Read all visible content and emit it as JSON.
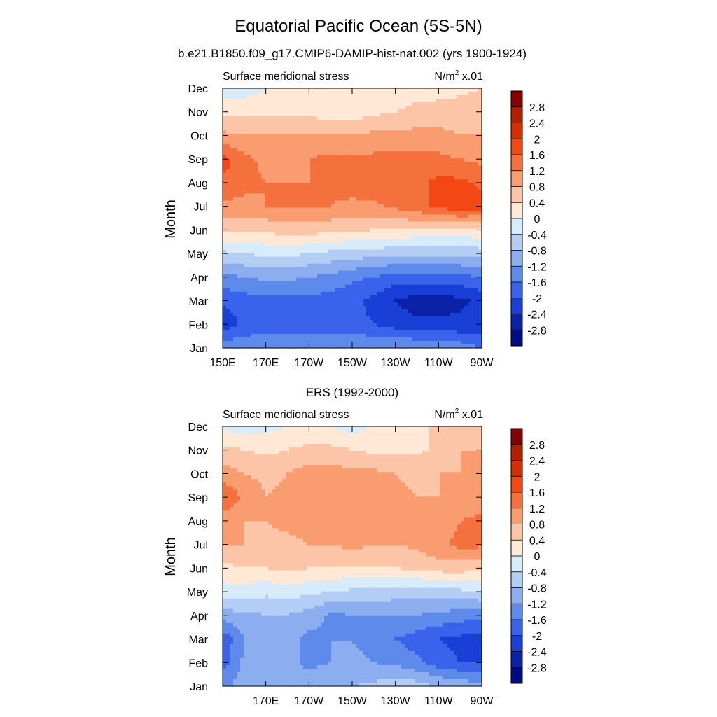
{
  "figure": {
    "title": "Equatorial Pacific Ocean (5S-5N)",
    "subtitle": "b.e21.B1850.f09_g17.CMIP6-DAMIP-hist-nat.002 (yrs 1900-1924)",
    "panel2_title": "ERS (1992-2000)"
  },
  "chart_data": [
    {
      "type": "heatmap",
      "panel": "model",
      "left_label": "Surface meridional stress",
      "right_label_base": "N/m",
      "right_label_sup": "2",
      "right_label_tail": " x.01",
      "ylabel": "Month",
      "xlabel": "",
      "x_ticks": [
        "150E",
        "170E",
        "170W",
        "150W",
        "130W",
        "110W",
        "90W"
      ],
      "x_tick_values": [
        150,
        170,
        190,
        210,
        230,
        250,
        270
      ],
      "y_ticks": [
        "Jan",
        "Feb",
        "Mar",
        "Apr",
        "May",
        "Jun",
        "Jul",
        "Aug",
        "Sep",
        "Oct",
        "Nov",
        "Dec"
      ],
      "xlim": [
        150,
        270
      ],
      "ylim": [
        1,
        12
      ],
      "x": [
        150,
        160,
        170,
        180,
        190,
        200,
        210,
        220,
        230,
        240,
        250,
        260,
        270
      ],
      "y": [
        "Jan",
        "Feb",
        "Mar",
        "Apr",
        "May",
        "Jun",
        "Jul",
        "Aug",
        "Sep",
        "Oct",
        "Nov",
        "Dec"
      ],
      "z": [
        [
          -1.3,
          -1.3,
          -1.3,
          -1.3,
          -1.3,
          -1.2,
          -1.2,
          -1.2,
          -1.2,
          -1.2,
          -1.3,
          -1.4,
          -1.6
        ],
        [
          -2.3,
          -1.9,
          -1.8,
          -1.8,
          -1.8,
          -1.8,
          -1.9,
          -2.0,
          -2.2,
          -2.3,
          -2.3,
          -2.3,
          -2.2
        ],
        [
          -1.9,
          -1.8,
          -1.7,
          -1.7,
          -1.7,
          -1.8,
          -1.9,
          -2.1,
          -2.4,
          -2.6,
          -2.6,
          -2.5,
          -2.3
        ],
        [
          -1.3,
          -1.2,
          -1.1,
          -1.1,
          -1.2,
          -1.3,
          -1.5,
          -1.6,
          -1.8,
          -1.8,
          -1.8,
          -1.7,
          -1.6
        ],
        [
          -0.5,
          -0.4,
          -0.3,
          -0.3,
          -0.4,
          -0.5,
          -0.6,
          -0.6,
          -0.7,
          -0.7,
          -0.7,
          -0.7,
          -0.6
        ],
        [
          0.5,
          0.5,
          0.5,
          0.6,
          0.6,
          0.5,
          0.5,
          0.4,
          0.4,
          0.3,
          0.3,
          0.3,
          0.3
        ],
        [
          1.1,
          1.1,
          1.2,
          1.2,
          1.2,
          1.2,
          1.1,
          1.1,
          1.3,
          1.5,
          1.7,
          1.9,
          1.8
        ],
        [
          1.5,
          1.3,
          1.2,
          1.2,
          1.2,
          1.3,
          1.4,
          1.5,
          1.5,
          1.5,
          1.7,
          1.7,
          1.5
        ],
        [
          1.8,
          1.3,
          1.1,
          1.1,
          1.2,
          1.3,
          1.3,
          1.3,
          1.3,
          1.3,
          1.3,
          1.2,
          1.1
        ],
        [
          0.9,
          0.8,
          0.8,
          0.8,
          0.8,
          0.8,
          0.8,
          0.9,
          0.9,
          0.9,
          0.9,
          0.8,
          0.8
        ],
        [
          0.3,
          0.3,
          0.3,
          0.3,
          0.3,
          0.2,
          0.2,
          0.3,
          0.4,
          0.6,
          0.6,
          0.6,
          0.6
        ],
        [
          -0.3,
          -0.2,
          0.0,
          0.1,
          0.1,
          0.1,
          0.1,
          0.1,
          0.0,
          0.1,
          0.2,
          0.3,
          0.4
        ]
      ]
    },
    {
      "type": "heatmap",
      "panel": "observations",
      "left_label": "Surface meridional stress",
      "right_label_base": "N/m",
      "right_label_sup": "2",
      "right_label_tail": " x.01",
      "ylabel": "Month",
      "xlabel": "",
      "x_ticks": [
        "170E",
        "170W",
        "150W",
        "130W",
        "110W",
        "90W"
      ],
      "x_tick_values": [
        170,
        190,
        210,
        230,
        250,
        270
      ],
      "y_ticks": [
        "Jan",
        "Feb",
        "Mar",
        "Apr",
        "May",
        "Jun",
        "Jul",
        "Aug",
        "Sep",
        "Oct",
        "Nov",
        "Dec"
      ],
      "xlim": [
        150,
        270
      ],
      "ylim": [
        1,
        12
      ],
      "x": [
        150,
        160,
        170,
        180,
        190,
        200,
        210,
        220,
        230,
        240,
        250,
        260,
        270
      ],
      "y": [
        "Jan",
        "Feb",
        "Mar",
        "Apr",
        "May",
        "Jun",
        "Jul",
        "Aug",
        "Sep",
        "Oct",
        "Nov",
        "Dec"
      ],
      "z": [
        [
          -1.3,
          -1.0,
          -0.9,
          -0.8,
          -1.0,
          -0.9,
          -0.8,
          -0.7,
          -0.5,
          -0.6,
          -0.8,
          -0.9,
          -1.1
        ],
        [
          -1.8,
          -1.1,
          -0.9,
          -1.1,
          -1.3,
          -1.2,
          -1.1,
          -1.2,
          -1.3,
          -1.5,
          -1.8,
          -2.0,
          -2.0
        ],
        [
          -1.9,
          -1.2,
          -1.0,
          -1.1,
          -1.3,
          -1.2,
          -1.2,
          -1.4,
          -1.6,
          -1.8,
          -2.0,
          -2.1,
          -2.2
        ],
        [
          -1.0,
          -0.9,
          -0.8,
          -0.8,
          -1.0,
          -1.3,
          -1.2,
          -1.2,
          -1.2,
          -1.2,
          -1.3,
          -1.4,
          -1.5
        ],
        [
          -0.2,
          -0.2,
          -0.3,
          -0.2,
          -0.3,
          -0.4,
          -0.5,
          -0.5,
          -0.6,
          -0.6,
          -0.6,
          -0.5,
          -0.4
        ],
        [
          0.3,
          0.4,
          0.4,
          0.5,
          0.4,
          0.4,
          0.4,
          0.4,
          0.4,
          0.5,
          0.6,
          0.6,
          0.5
        ],
        [
          0.8,
          0.8,
          0.7,
          0.7,
          0.8,
          0.8,
          0.9,
          0.8,
          0.8,
          0.9,
          1.1,
          1.3,
          1.3
        ],
        [
          1.0,
          0.8,
          0.8,
          0.9,
          1.0,
          0.9,
          0.9,
          1.0,
          0.9,
          0.9,
          1.0,
          1.2,
          1.3
        ],
        [
          1.6,
          1.1,
          0.8,
          0.9,
          1.0,
          1.0,
          1.0,
          1.0,
          0.9,
          0.8,
          0.8,
          0.8,
          1.0
        ],
        [
          1.0,
          0.8,
          0.7,
          0.8,
          1.0,
          1.0,
          0.9,
          0.9,
          0.8,
          0.7,
          0.8,
          0.8,
          1.1
        ],
        [
          0.5,
          0.4,
          0.3,
          0.4,
          0.5,
          0.5,
          0.4,
          0.3,
          0.3,
          0.3,
          0.5,
          0.8,
          0.8
        ],
        [
          -0.1,
          -0.2,
          -0.1,
          0.0,
          0.1,
          0.0,
          -0.2,
          0.1,
          0.3,
          0.4,
          0.4,
          0.5,
          0.4
        ]
      ]
    }
  ],
  "colorbar": {
    "labels": [
      "2.8",
      "2.4",
      "2",
      "1.6",
      "1.2",
      "0.8",
      "0.4",
      "0",
      "-0.4",
      "-0.8",
      "-1.2",
      "-1.6",
      "-2",
      "-2.4",
      "-2.8"
    ],
    "levels": [
      2.8,
      2.4,
      2.0,
      1.6,
      1.2,
      0.8,
      0.4,
      0.0,
      -0.4,
      -0.8,
      -1.2,
      -1.6,
      -2.0,
      -2.4,
      -2.8
    ],
    "colors_top_to_bottom": [
      "#870000",
      "#B41E00",
      "#D73000",
      "#F34814",
      "#F4713E",
      "#F99D70",
      "#FCC5A8",
      "#FFE8D6",
      "#D8EBFA",
      "#B4CDF5",
      "#8CAEF0",
      "#5E8BEB",
      "#3A63EC",
      "#1A3FD6",
      "#0A21A8",
      "#020B85"
    ]
  }
}
